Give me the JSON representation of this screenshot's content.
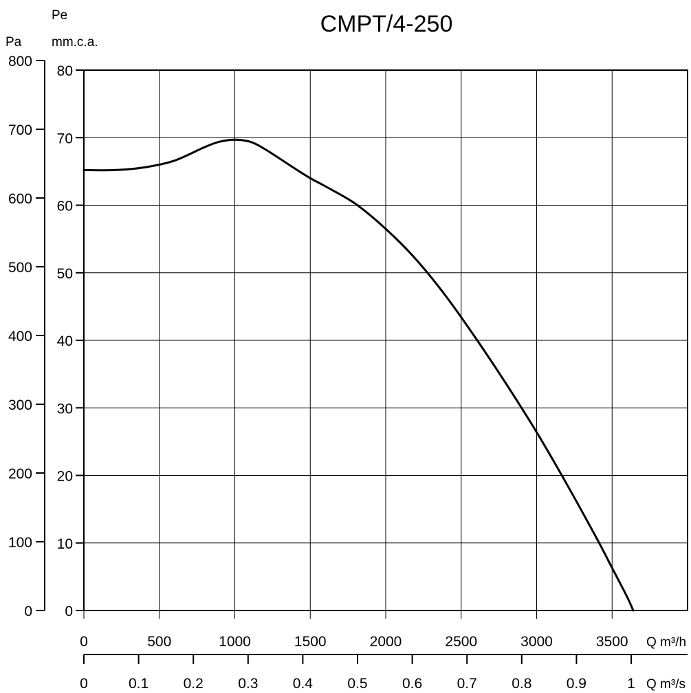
{
  "chart_data": {
    "type": "line",
    "title": "CMPT/4-250",
    "y_pa_label": "Pa",
    "y_mmca_label_line1": "Pe",
    "y_mmca_label_line2": "mm.c.a.",
    "x_m3h_label": "Q m³/h",
    "x_m3s_label": "Q m³/s",
    "grid": true,
    "y_pa_ticks": [
      "0",
      "100",
      "200",
      "300",
      "400",
      "500",
      "600",
      "700",
      "800"
    ],
    "y_mmca_ticks": [
      "0",
      "10",
      "20",
      "30",
      "40",
      "50",
      "60",
      "70",
      "80"
    ],
    "x_m3h_ticks": [
      "0",
      "500",
      "1000",
      "1500",
      "2000",
      "2500",
      "3000",
      "3500"
    ],
    "x_m3s_ticks": [
      "0",
      "0.1",
      "0.2",
      "0.3",
      "0.4",
      "0.5",
      "0.6",
      "0.7",
      "0.8",
      "0.9",
      "1"
    ],
    "xlim_m3h": [
      0,
      4000
    ],
    "ylim_mmca": [
      0,
      80
    ],
    "series": [
      {
        "x": [
          0,
          200,
          400,
          600,
          800,
          900,
          1000,
          1100,
          1200,
          1400,
          1500,
          1600,
          1800,
          2000,
          2200,
          2400,
          2600,
          2800,
          3000,
          3200,
          3400,
          3500,
          3600,
          3640
        ],
        "y": [
          65.2,
          65.2,
          65.6,
          66.6,
          68.6,
          69.4,
          69.7,
          69.4,
          68.3,
          65.4,
          64.0,
          62.8,
          60.2,
          56.5,
          52.0,
          46.5,
          40.2,
          33.5,
          26.4,
          18.7,
          10.6,
          6.3,
          2.0,
          0
        ]
      }
    ]
  }
}
